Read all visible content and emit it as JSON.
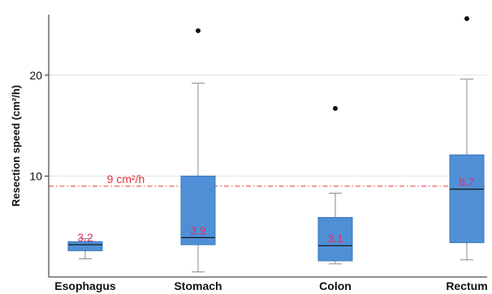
{
  "chart_data": {
    "type": "box",
    "title": "",
    "ylabel": "Resection speed (cm²/h)",
    "xlabel": "",
    "ylim": [
      0,
      26
    ],
    "yticks": [
      10,
      20
    ],
    "grid": "horizontal",
    "categories": [
      "Esophagus",
      "Stomach",
      "Colon",
      "Rectum"
    ],
    "boxes": [
      {
        "category": "Esophagus",
        "min": 1.8,
        "q1": 2.6,
        "median": 3.2,
        "q3": 3.5,
        "max": 3.8,
        "outliers": [],
        "median_label": "3.2"
      },
      {
        "category": "Stomach",
        "min": 0.5,
        "q1": 3.2,
        "median": 3.9,
        "q3": 10.0,
        "max": 19.2,
        "outliers": [
          24.4
        ],
        "median_label": "3.9"
      },
      {
        "category": "Colon",
        "min": 1.3,
        "q1": 1.6,
        "median": 3.1,
        "q3": 5.9,
        "max": 8.3,
        "outliers": [
          16.7
        ],
        "median_label": "3.1"
      },
      {
        "category": "Rectum",
        "min": 1.7,
        "q1": 3.4,
        "median": 8.7,
        "q3": 12.1,
        "max": 19.6,
        "outliers": [
          25.6
        ],
        "median_label": "8.7"
      }
    ],
    "reference_line": {
      "value": 9,
      "label": "9 cm²/h",
      "color": "#e0303a"
    },
    "box_color": "#4f8fd6",
    "median_label_color": "#e0306a"
  }
}
